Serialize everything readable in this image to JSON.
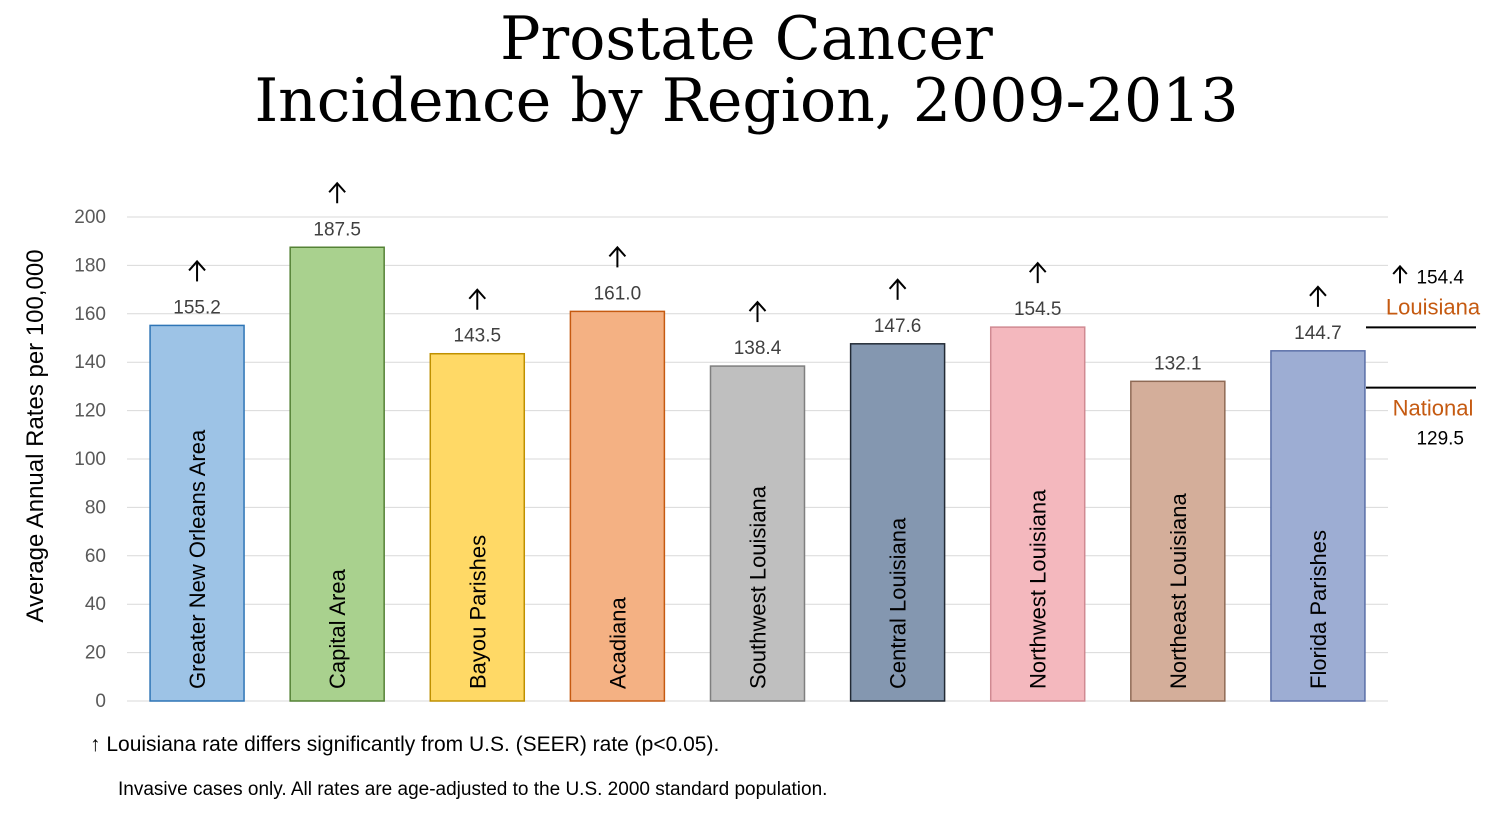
{
  "title": {
    "line1": "Prostate Cancer",
    "line2": "Incidence by Region, 2009-2013"
  },
  "chart_data": {
    "type": "bar",
    "title": "Prostate Cancer Incidence by Region, 2009-2013",
    "ylabel": "Average Annual Rates per 100,000",
    "xlabel": "",
    "ylim": [
      0,
      200
    ],
    "yticks": [
      0,
      20,
      40,
      60,
      80,
      100,
      120,
      140,
      160,
      180,
      200
    ],
    "grid": true,
    "categories": [
      "Greater New Orleans Area",
      "Capital Area",
      "Bayou Parishes",
      "Acadiana",
      "Southwest Louisiana",
      "Central Louisiana",
      "Northwest Louisiana",
      "Northeast Louisiana",
      "Florida Parishes"
    ],
    "values": [
      155.2,
      187.5,
      143.5,
      161.0,
      138.4,
      147.6,
      154.5,
      132.1,
      144.7
    ],
    "value_labels": [
      "155.2",
      "187.5",
      "143.5",
      "161.0",
      "138.4",
      "147.6",
      "154.5",
      "132.1",
      "144.7"
    ],
    "significant_up": [
      true,
      true,
      true,
      true,
      true,
      true,
      true,
      false,
      true
    ],
    "colors": [
      "#9DC3E6",
      "#A9D18E",
      "#FFD966",
      "#F4B183",
      "#BFBFBF",
      "#8497B0",
      "#F4B8BE",
      "#D4AE9A",
      "#9DADD3"
    ],
    "borders": [
      "#2E75B6",
      "#548235",
      "#BF9000",
      "#C55A11",
      "#7F7F7F",
      "#222A35",
      "#D08A92",
      "#8F6A55",
      "#5A6FA8"
    ],
    "reference_lines": [
      {
        "name": "Louisiana",
        "value": 154.4,
        "label": "154.4",
        "significant_up": true,
        "color": "#000000",
        "label_color": "#C55A11"
      },
      {
        "name": "National",
        "value": 129.5,
        "label": "129.5",
        "significant_up": false,
        "color": "#000000",
        "label_color": "#C55A11"
      }
    ]
  },
  "footnotes": {
    "significance": "Louisiana rate differs significantly from U.S. (SEER) rate (p<0.05).",
    "method": "Invasive cases only. All rates are age-adjusted to the U.S. 2000 standard population."
  }
}
